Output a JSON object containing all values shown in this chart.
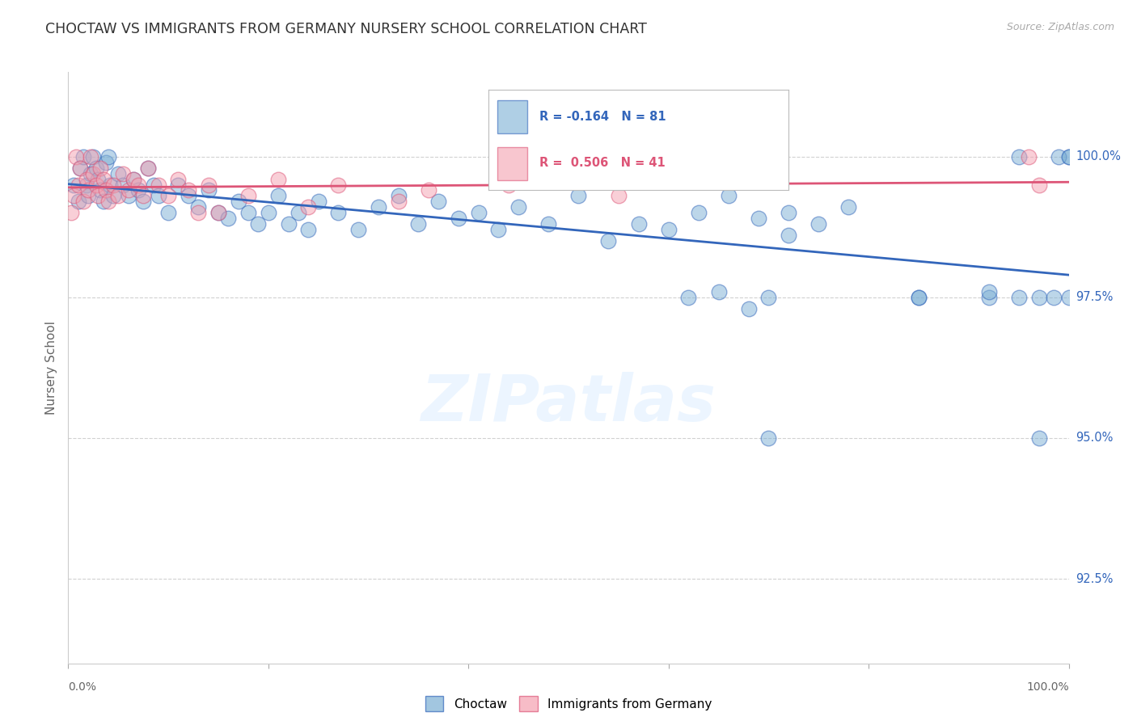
{
  "title": "CHOCTAW VS IMMIGRANTS FROM GERMANY NURSERY SCHOOL CORRELATION CHART",
  "source": "Source: ZipAtlas.com",
  "ylabel": "Nursery School",
  "ytick_values": [
    92.5,
    95.0,
    97.5,
    100.0
  ],
  "xlim": [
    0.0,
    100.0
  ],
  "ylim": [
    91.0,
    101.5
  ],
  "legend_blue_label": "Choctaw",
  "legend_pink_label": "Immigrants from Germany",
  "r_blue": -0.164,
  "n_blue": 81,
  "r_pink": 0.506,
  "n_pink": 41,
  "blue_color": "#7BAFD4",
  "pink_color": "#F4A0B0",
  "trendline_blue": "#3366BB",
  "trendline_pink": "#DD5577",
  "background_color": "#FFFFFF",
  "blue_points_x": [
    0.5,
    1.0,
    1.2,
    1.5,
    1.8,
    2.0,
    2.2,
    2.5,
    2.8,
    3.0,
    3.2,
    3.5,
    3.8,
    4.0,
    4.2,
    4.5,
    5.0,
    5.5,
    6.0,
    6.5,
    7.0,
    7.5,
    8.0,
    8.5,
    9.0,
    10.0,
    11.0,
    12.0,
    13.0,
    14.0,
    15.0,
    16.0,
    17.0,
    18.0,
    19.0,
    20.0,
    21.0,
    22.0,
    23.0,
    24.0,
    25.0,
    27.0,
    29.0,
    31.0,
    33.0,
    35.0,
    37.0,
    39.0,
    41.0,
    43.0,
    45.0,
    48.0,
    51.0,
    54.0,
    57.0,
    60.0,
    63.0,
    66.0,
    69.0,
    72.0,
    75.0,
    78.0,
    85.0,
    62.0,
    65.0,
    70.0,
    85.0,
    92.0,
    95.0,
    97.0,
    98.5,
    100.0,
    68.0,
    70.0,
    72.0,
    92.0,
    95.0,
    97.0,
    99.0,
    100.0,
    100.0
  ],
  "blue_points_y": [
    99.5,
    99.2,
    99.8,
    100.0,
    99.5,
    99.3,
    99.7,
    100.0,
    99.8,
    99.6,
    99.4,
    99.2,
    99.9,
    100.0,
    99.5,
    99.3,
    99.7,
    99.5,
    99.3,
    99.6,
    99.4,
    99.2,
    99.8,
    99.5,
    99.3,
    99.0,
    99.5,
    99.3,
    99.1,
    99.4,
    99.0,
    98.9,
    99.2,
    99.0,
    98.8,
    99.0,
    99.3,
    98.8,
    99.0,
    98.7,
    99.2,
    99.0,
    98.7,
    99.1,
    99.3,
    98.8,
    99.2,
    98.9,
    99.0,
    98.7,
    99.1,
    98.8,
    99.3,
    98.5,
    98.8,
    98.7,
    99.0,
    99.3,
    98.9,
    98.6,
    98.8,
    99.1,
    97.5,
    97.5,
    97.6,
    97.5,
    97.5,
    97.5,
    100.0,
    97.5,
    97.5,
    100.0,
    97.3,
    95.0,
    99.0,
    97.6,
    97.5,
    95.0,
    100.0,
    97.5,
    100.0
  ],
  "pink_points_x": [
    0.3,
    0.5,
    0.8,
    1.0,
    1.2,
    1.5,
    1.8,
    2.0,
    2.2,
    2.5,
    2.8,
    3.0,
    3.2,
    3.5,
    3.8,
    4.0,
    4.5,
    5.0,
    5.5,
    6.0,
    6.5,
    7.0,
    7.5,
    8.0,
    9.0,
    10.0,
    11.0,
    12.0,
    13.0,
    14.0,
    15.0,
    18.0,
    21.0,
    24.0,
    27.0,
    33.0,
    36.0,
    44.0,
    55.0,
    96.0,
    97.0
  ],
  "pink_points_y": [
    99.0,
    99.3,
    100.0,
    99.5,
    99.8,
    99.2,
    99.6,
    99.4,
    100.0,
    99.7,
    99.5,
    99.3,
    99.8,
    99.6,
    99.4,
    99.2,
    99.5,
    99.3,
    99.7,
    99.4,
    99.6,
    99.5,
    99.3,
    99.8,
    99.5,
    99.3,
    99.6,
    99.4,
    99.0,
    99.5,
    99.0,
    99.3,
    99.6,
    99.1,
    99.5,
    99.2,
    99.4,
    99.5,
    99.3,
    100.0,
    99.5
  ]
}
